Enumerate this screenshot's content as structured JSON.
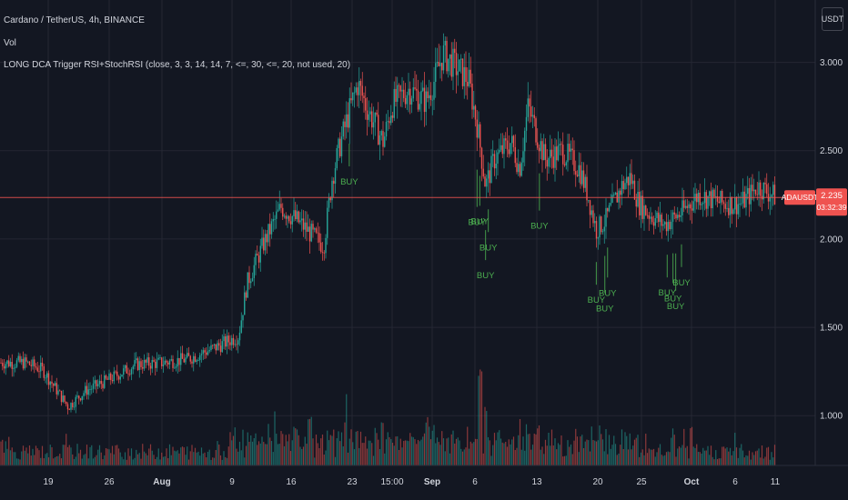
{
  "header": {
    "title": "Cardano / TetherUS, 4h, BINANCE",
    "indicators": [
      "Vol",
      "LONG DCA Trigger RSI+StochRSI (close, 3, 3, 14, 14, 7, <=, 30, <=, 20, not used, 20)"
    ]
  },
  "currency_button": "USDT",
  "price_scale": {
    "ticks": [
      {
        "label": "3.000",
        "value": 3.0
      },
      {
        "label": "2.500",
        "value": 2.5
      },
      {
        "label": "2.000",
        "value": 2.0
      },
      {
        "label": "1.500",
        "value": 1.5
      },
      {
        "label": "1.000",
        "value": 1.0
      }
    ]
  },
  "time_axis": {
    "ticks": [
      "19",
      "26",
      "Aug",
      "9",
      "16",
      "23",
      "15:00",
      "Sep",
      "6",
      "13",
      "20",
      "25",
      "Oct",
      "6",
      "11"
    ],
    "bold_ticks": [
      "Aug",
      "Sep",
      "Oct"
    ]
  },
  "last_price": {
    "symbol": "ADAUSDT",
    "price": "2.235",
    "countdown": "03:32:39",
    "value": 2.235
  },
  "signal_label": "BUY",
  "colors": {
    "background": "#131722",
    "up": "#26a69a",
    "down": "#ef5350",
    "grid": "#242733",
    "text": "#d1d4dc",
    "buy": "#4caf50",
    "price_line": "#ef5350"
  },
  "chart_data": {
    "type": "candlestick",
    "symbol": "ADAUSDT",
    "interval": "4h",
    "y_range": [
      0.78,
      3.25
    ],
    "path": [
      [
        "Jul 15",
        1.3
      ],
      [
        "Jul 17",
        1.26
      ],
      [
        "Jul 19",
        1.12
      ],
      [
        "Jul 20",
        1.05
      ],
      [
        "Jul 22",
        1.14
      ],
      [
        "Jul 25",
        1.21
      ],
      [
        "Jul 28",
        1.29
      ],
      [
        "Jul 31",
        1.3
      ],
      [
        "Aug 3",
        1.32
      ],
      [
        "Aug 6",
        1.38
      ],
      [
        "Aug 9",
        1.45
      ],
      [
        "Aug 10",
        1.75
      ],
      [
        "Aug 12",
        1.98
      ],
      [
        "Aug 14",
        2.18
      ],
      [
        "Aug 16",
        2.1
      ],
      [
        "Aug 19",
        1.96
      ],
      [
        "Aug 20",
        2.35
      ],
      [
        "Aug 21",
        2.55
      ],
      [
        "Aug 22",
        2.72
      ],
      [
        "Aug 23",
        2.88
      ],
      [
        "Aug 24",
        2.75
      ],
      [
        "Aug 26",
        2.55
      ],
      [
        "Aug 27",
        2.76
      ],
      [
        "Aug 29",
        2.85
      ],
      [
        "Aug 31",
        2.78
      ],
      [
        "Sep 1",
        2.9
      ],
      [
        "Sep 2",
        3.05
      ],
      [
        "Sep 4",
        2.95
      ],
      [
        "Sep 5",
        2.9
      ],
      [
        "Sep 6",
        2.65
      ],
      [
        "Sep 7",
        2.3
      ],
      [
        "Sep 8",
        2.45
      ],
      [
        "Sep 10",
        2.55
      ],
      [
        "Sep 11",
        2.4
      ],
      [
        "Sep 12",
        2.75
      ],
      [
        "Sep 13",
        2.6
      ],
      [
        "Sep 14",
        2.45
      ],
      [
        "Sep 16",
        2.5
      ],
      [
        "Sep 18",
        2.4
      ],
      [
        "Sep 19",
        2.25
      ],
      [
        "Sep 20",
        2.05
      ],
      [
        "Sep 21",
        2.1
      ],
      [
        "Sep 23",
        2.3
      ],
      [
        "Sep 24",
        2.35
      ],
      [
        "Sep 25",
        2.2
      ],
      [
        "Sep 26",
        2.15
      ],
      [
        "Sep 28",
        2.08
      ],
      [
        "Sep 30",
        2.15
      ],
      [
        "Oct 2",
        2.25
      ],
      [
        "Oct 5",
        2.2
      ],
      [
        "Oct 7",
        2.2
      ],
      [
        "Oct 9",
        2.3
      ],
      [
        "Oct 11",
        2.24
      ]
    ],
    "buy_signals": [
      "Aug 22",
      "Sep 6",
      "Sep 6",
      "Sep 7",
      "Sep 7",
      "Sep 13",
      "Sep 20",
      "Sep 21",
      "Sep 21",
      "Sep 28",
      "Sep 29",
      "Sep 29",
      "Sep 30"
    ]
  }
}
